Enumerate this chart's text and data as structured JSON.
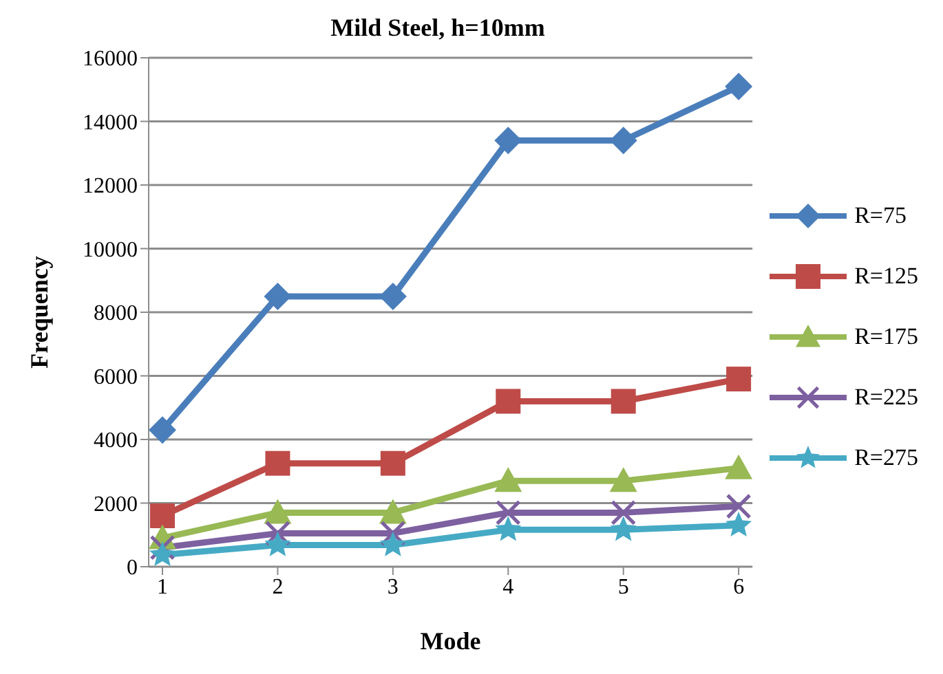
{
  "chart_data": {
    "type": "line",
    "title": "Mild Steel, h=10mm",
    "xlabel": "Mode",
    "ylabel": "Frequency",
    "categories": [
      "1",
      "2",
      "3",
      "4",
      "5",
      "6"
    ],
    "series": [
      {
        "name": "R=75",
        "color": "#4a7ebb",
        "marker": "diamond",
        "values": [
          4300,
          8500,
          8500,
          13400,
          13400,
          15100
        ]
      },
      {
        "name": "R=125",
        "color": "#be4b48",
        "marker": "square",
        "values": [
          1600,
          3250,
          3250,
          5200,
          5200,
          5900
        ]
      },
      {
        "name": "R=175",
        "color": "#98b954",
        "marker": "triangle",
        "values": [
          900,
          1700,
          1700,
          2700,
          2700,
          3100
        ]
      },
      {
        "name": "R=225",
        "color": "#7d60a0",
        "marker": "cross",
        "values": [
          600,
          1050,
          1050,
          1700,
          1700,
          1900
        ]
      },
      {
        "name": "R=275",
        "color": "#46aac5",
        "marker": "star",
        "values": [
          370,
          680,
          680,
          1160,
          1160,
          1300
        ]
      }
    ],
    "ylim": [
      0,
      16000
    ],
    "yticks": [
      0,
      2000,
      4000,
      6000,
      8000,
      10000,
      12000,
      14000,
      16000
    ],
    "grid": "y",
    "legend": "right",
    "line_style": "solid"
  }
}
